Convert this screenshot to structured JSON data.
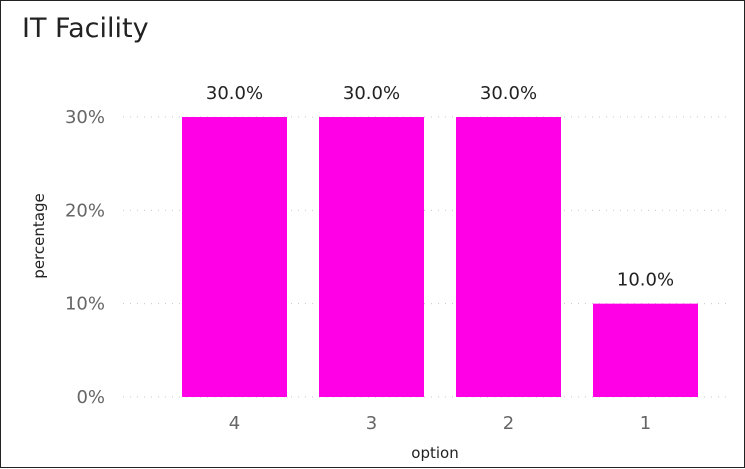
{
  "title": "IT Facility",
  "chart_data": {
    "type": "bar",
    "title": "IT Facility",
    "categories": [
      "4",
      "3",
      "2",
      "1"
    ],
    "values": [
      30.0,
      30.0,
      30.0,
      10.0
    ],
    "data_labels": [
      "30.0%",
      "30.0%",
      "30.0%",
      "10.0%"
    ],
    "xlabel": "option",
    "ylabel": "percentage",
    "ylim": [
      0,
      30
    ],
    "yticks": [
      0,
      10,
      20,
      30
    ],
    "ytick_labels": [
      "0%",
      "10%",
      "20%",
      "30%"
    ],
    "grid": "dotted-horizontal",
    "bar_color": "#FF00E6"
  }
}
